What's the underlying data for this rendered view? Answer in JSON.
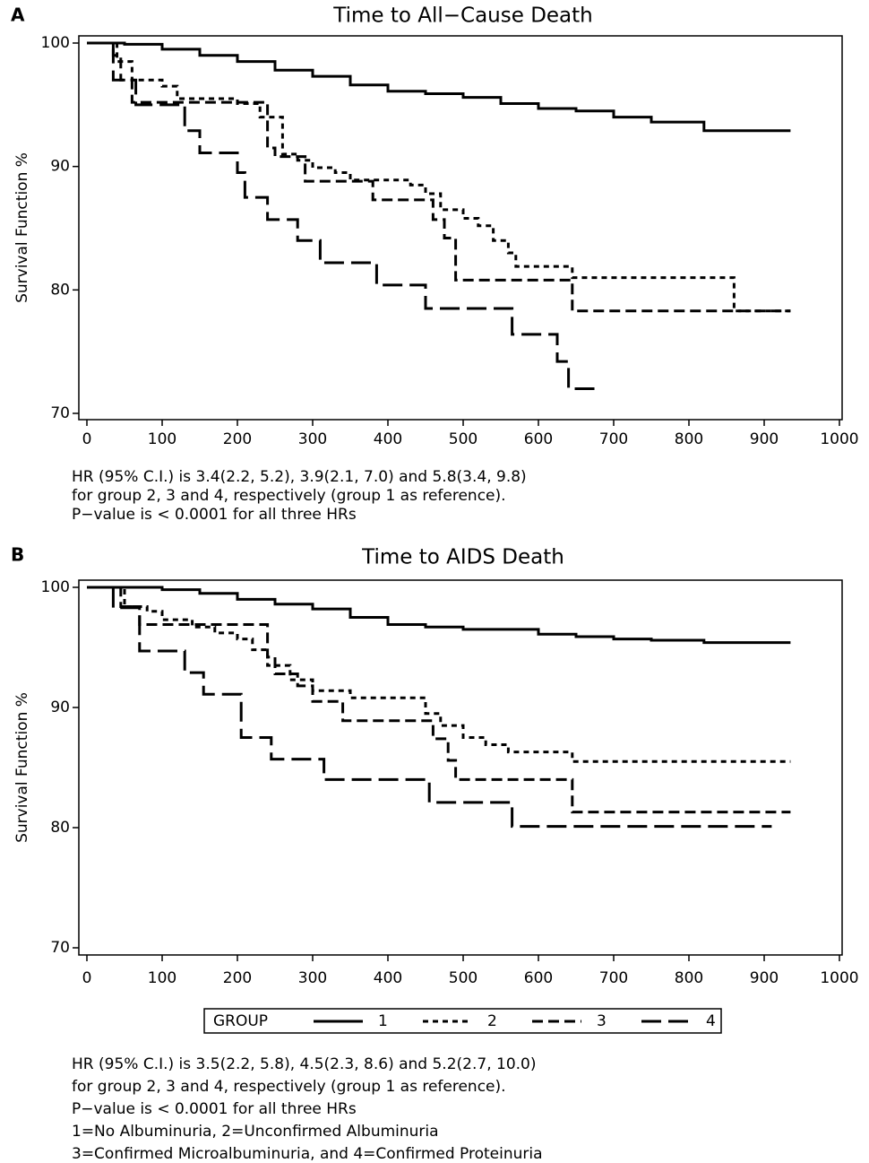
{
  "chart_data": [
    {
      "type": "line",
      "step": true,
      "panel_label": "A",
      "title": "Time to All−Cause Death",
      "ylabel": "Survival Function %",
      "xlim": [
        0,
        1000
      ],
      "ylim": [
        70,
        100
      ],
      "xticks": [
        0,
        100,
        200,
        300,
        400,
        500,
        600,
        700,
        800,
        900,
        1000
      ],
      "yticks": [
        70,
        80,
        90,
        100
      ],
      "legend": false,
      "series": [
        {
          "color": "#000000",
          "dash": "solid",
          "x": [
            0,
            50,
            100,
            150,
            200,
            250,
            300,
            350,
            400,
            450,
            500,
            550,
            600,
            650,
            700,
            750,
            820,
            935
          ],
          "values": [
            100,
            99.9,
            99.5,
            99,
            98.5,
            97.8,
            97.3,
            96.6,
            96.1,
            95.9,
            95.6,
            95.1,
            94.7,
            94.5,
            94,
            93.6,
            92.9,
            92.9
          ]
        },
        {
          "color": "#000000",
          "dash": "dotted",
          "x": [
            0,
            40,
            60,
            100,
            120,
            200,
            230,
            260,
            280,
            300,
            330,
            350,
            430,
            450,
            470,
            500,
            520,
            540,
            560,
            570,
            645,
            860,
            935
          ],
          "values": [
            100,
            98.5,
            97,
            96.5,
            95.5,
            95.1,
            94,
            91,
            90.5,
            89.9,
            89.5,
            88.9,
            88.5,
            87.8,
            86.5,
            85.8,
            85.2,
            84,
            83,
            81.9,
            81,
            78.3,
            78.3
          ]
        },
        {
          "color": "#000000",
          "dash": "dashed",
          "x": [
            0,
            35,
            45,
            60,
            240,
            250,
            290,
            380,
            460,
            475,
            490,
            645,
            935
          ],
          "values": [
            100,
            99,
            97,
            95.2,
            91.5,
            90.8,
            88.8,
            87.3,
            85.7,
            84.2,
            80.8,
            78.3,
            78.3
          ]
        },
        {
          "color": "#000000",
          "dash": "longdash",
          "x": [
            0,
            35,
            65,
            130,
            150,
            200,
            210,
            240,
            280,
            310,
            385,
            450,
            565,
            625,
            640,
            680
          ],
          "values": [
            100,
            97,
            95,
            92.9,
            91.1,
            89.5,
            87.5,
            85.7,
            84,
            82.2,
            80.4,
            78.5,
            76.4,
            74.2,
            72,
            72
          ]
        }
      ],
      "notes": [
        "HR (95% C.I.) is 3.4(2.2, 5.2), 3.9(2.1, 7.0) and 5.8(3.4, 9.8)",
        "for group 2, 3 and 4, respectively (group 1 as reference).",
        "P−value is < 0.0001 for all three HRs"
      ]
    },
    {
      "type": "line",
      "step": true,
      "panel_label": "B",
      "title": "Time to AIDS Death",
      "ylabel": "Survival Function %",
      "xlim": [
        0,
        1000
      ],
      "ylim": [
        70,
        100
      ],
      "xticks": [
        0,
        100,
        200,
        300,
        400,
        500,
        600,
        700,
        800,
        900,
        1000
      ],
      "yticks": [
        70,
        80,
        90,
        100
      ],
      "legend": true,
      "legend_title": "GROUP",
      "series": [
        {
          "name": "1",
          "color": "#000000",
          "dash": "solid",
          "x": [
            0,
            100,
            150,
            200,
            250,
            300,
            350,
            400,
            450,
            500,
            600,
            650,
            700,
            750,
            820,
            935
          ],
          "values": [
            100,
            99.8,
            99.5,
            99,
            98.6,
            98.2,
            97.5,
            96.9,
            96.7,
            96.5,
            96.1,
            95.9,
            95.7,
            95.6,
            95.4,
            95.4
          ]
        },
        {
          "name": "2",
          "color": "#000000",
          "dash": "dotted",
          "x": [
            0,
            50,
            80,
            100,
            140,
            170,
            200,
            220,
            240,
            270,
            300,
            350,
            450,
            470,
            500,
            530,
            560,
            645,
            935
          ],
          "values": [
            100,
            98.4,
            98,
            97.3,
            96.7,
            96.2,
            95.7,
            94.8,
            93.5,
            92.3,
            91.4,
            90.8,
            89.5,
            88.5,
            87.5,
            86.9,
            86.3,
            85.5,
            85.5
          ]
        },
        {
          "name": "3",
          "color": "#000000",
          "dash": "dashed",
          "x": [
            0,
            45,
            70,
            240,
            250,
            280,
            300,
            340,
            460,
            480,
            490,
            645,
            935
          ],
          "values": [
            100,
            98.4,
            96.9,
            94.2,
            92.8,
            91.8,
            90.5,
            88.9,
            87.4,
            85.6,
            84,
            81.3,
            81.3
          ]
        },
        {
          "name": "4",
          "color": "#000000",
          "dash": "longdash",
          "x": [
            0,
            35,
            70,
            130,
            155,
            205,
            245,
            315,
            455,
            565,
            910
          ],
          "values": [
            100,
            98.3,
            94.7,
            92.9,
            91.1,
            87.5,
            85.7,
            84,
            82.1,
            80.1,
            80.1
          ]
        }
      ],
      "notes": [
        "HR (95% C.I.) is 3.5(2.2, 5.8), 4.5(2.3, 8.6) and 5.2(2.7, 10.0)",
        "for group 2, 3 and 4, respectively (group 1 as reference).",
        "P−value is < 0.0001 for all three HRs",
        "1=No Albuminuria, 2=Unconfirmed Albuminuria",
        "3=Confirmed Microalbuminuria, and 4=Confirmed Proteinuria"
      ]
    }
  ]
}
